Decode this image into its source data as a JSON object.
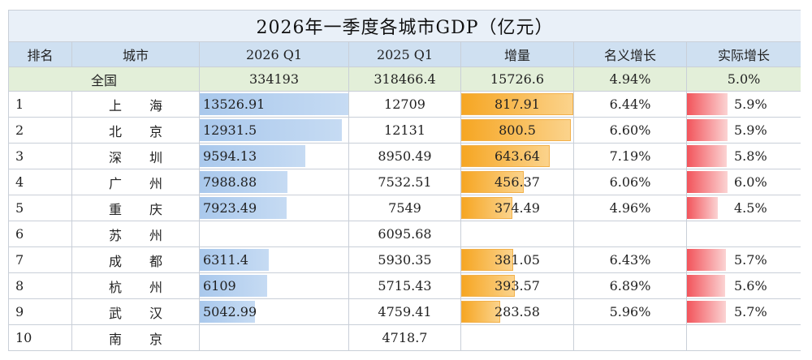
{
  "title": "2026年一季度各城市GDP（亿元）",
  "headers": [
    "排名",
    "城市",
    "2026 Q1",
    "2025 Q1",
    "增量",
    "名义增长",
    "实际增长"
  ],
  "nation": {
    "label": "全国",
    "q1_2026": "334193",
    "q1_2025": "318466.4",
    "increase": "15726.6",
    "nominal": "4.94%",
    "real": "5.0%"
  },
  "rows": [
    {
      "rank": "1",
      "city": "上海",
      "q1_2026": "13526.91",
      "q1_2025": "12709",
      "increase": "817.91",
      "nominal": "6.44%",
      "real": "5.9%"
    },
    {
      "rank": "2",
      "city": "北京",
      "q1_2026": "12931.5",
      "q1_2025": "12131",
      "increase": "800.5",
      "nominal": "6.60%",
      "real": "5.9%"
    },
    {
      "rank": "3",
      "city": "深圳",
      "q1_2026": "9594.13",
      "q1_2025": "8950.49",
      "increase": "643.64",
      "nominal": "7.19%",
      "real": "5.8%"
    },
    {
      "rank": "4",
      "city": "广州",
      "q1_2026": "7988.88",
      "q1_2025": "7532.51",
      "increase": "456.37",
      "nominal": "6.06%",
      "real": "6.0%"
    },
    {
      "rank": "5",
      "city": "重庆",
      "q1_2026": "7923.49",
      "q1_2025": "7549",
      "increase": "374.49",
      "nominal": "4.96%",
      "real": "4.5%"
    },
    {
      "rank": "6",
      "city": "苏州",
      "q1_2026": "",
      "q1_2025": "6095.68",
      "increase": "",
      "nominal": "",
      "real": ""
    },
    {
      "rank": "7",
      "city": "成都",
      "q1_2026": "6311.4",
      "q1_2025": "5930.35",
      "increase": "381.05",
      "nominal": "6.43%",
      "real": "5.7%"
    },
    {
      "rank": "8",
      "city": "杭州",
      "q1_2026": "6109",
      "q1_2025": "5715.43",
      "increase": "393.57",
      "nominal": "6.89%",
      "real": "5.6%"
    },
    {
      "rank": "9",
      "city": "武汉",
      "q1_2026": "5042.99",
      "q1_2025": "4759.41",
      "increase": "283.58",
      "nominal": "5.96%",
      "real": "5.7%"
    },
    {
      "rank": "10",
      "city": "南京",
      "q1_2026": "",
      "q1_2025": "4718.7",
      "increase": "",
      "nominal": "",
      "real": ""
    }
  ],
  "colors": {
    "blue_bar": "#a9c8ec",
    "orange_bar": "#f6a623",
    "red_bar": "#f2545b",
    "header_bg": "#cfe0f1",
    "nation_bg": "#e3efd9"
  }
}
